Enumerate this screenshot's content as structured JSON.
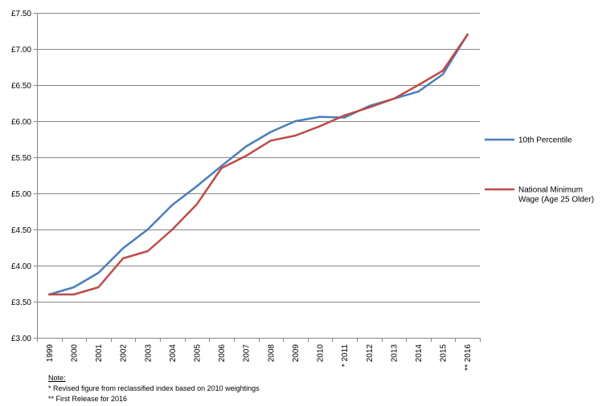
{
  "chart_data": {
    "type": "line",
    "title": "",
    "xlabel": "",
    "ylabel": "",
    "categories": [
      "1999",
      "2000",
      "2001",
      "2002",
      "2003",
      "2004",
      "2005",
      "2006",
      "2007",
      "2008",
      "2009",
      "2010",
      "2011",
      "2012",
      "2013",
      "2014",
      "2015",
      "2016"
    ],
    "x_tick_labels": [
      "1999",
      "2000",
      "2001",
      "2002",
      "2003",
      "2004",
      "2005",
      "2006",
      "2007",
      "2008",
      "2009",
      "2010",
      "* 2011",
      "2012",
      "2013",
      "2014",
      "2015",
      "** 2016"
    ],
    "y_ticks": [
      3.0,
      3.5,
      4.0,
      4.5,
      5.0,
      5.5,
      6.0,
      6.5,
      7.0,
      7.5
    ],
    "y_tick_labels": [
      "£3.00",
      "£3.50",
      "£4.00",
      "£4.50",
      "£5.00",
      "£5.50",
      "£6.00",
      "£6.50",
      "£7.00",
      "£7.50"
    ],
    "ylim": [
      3.0,
      7.5
    ],
    "grid": true,
    "legend_position": "right",
    "series": [
      {
        "name": "10th Percentile",
        "color": "#4a7ebb",
        "values": [
          3.6,
          3.7,
          3.9,
          4.24,
          4.5,
          4.84,
          5.1,
          5.38,
          5.65,
          5.85,
          6.0,
          6.06,
          6.05,
          6.21,
          6.31,
          6.41,
          6.65,
          7.2
        ]
      },
      {
        "name": "National Minimum Wage (Age 25 Older)",
        "color": "#be4b48",
        "legend_lines": [
          "National Minimum",
          "Wage (Age 25 Older)"
        ],
        "values": [
          3.6,
          3.6,
          3.7,
          4.1,
          4.2,
          4.5,
          4.85,
          5.35,
          5.52,
          5.73,
          5.8,
          5.93,
          6.08,
          6.19,
          6.31,
          6.5,
          6.7,
          7.2
        ]
      }
    ]
  },
  "notes": {
    "title": "Note:",
    "line1": "* Revised figure from reclassified index based on 2010 weightings",
    "line2": "** First Release for 2016"
  }
}
